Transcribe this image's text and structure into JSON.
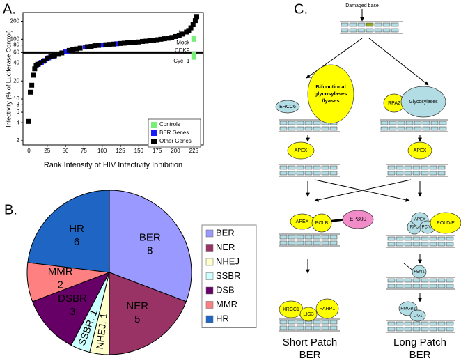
{
  "panel_labels": [
    "A.",
    "B.",
    "C."
  ],
  "chart_data": [
    {
      "type": "scatter",
      "xlabel": "Rank Intensity of HIV Infectivity Inhibition",
      "ylabel": "Infectivity (% of Luciferase Control)",
      "y_scale": "log",
      "xlim": [
        -8,
        238
      ],
      "ylim": [
        1.7,
        280
      ],
      "xticks": [
        0,
        25,
        50,
        75,
        100,
        125,
        150,
        175,
        200,
        225
      ],
      "yticks": [
        2,
        4,
        6,
        8,
        10,
        20,
        40,
        60,
        80,
        100,
        200
      ],
      "reference_line": 60,
      "legend": "bottom-right",
      "series": [
        {
          "name": "Controls",
          "color": "#77ee77",
          "x": [
            225,
            225,
            225,
            225
          ],
          "values": [
            105,
            100,
            56,
            50
          ]
        },
        {
          "name": "BER Genes",
          "color": "#1a1aff",
          "x": [
            13,
            17,
            22,
            27,
            33,
            50,
            52,
            77,
            100,
            120
          ],
          "values": [
            38,
            41,
            44,
            49,
            52,
            62,
            63,
            74,
            80,
            84
          ]
        },
        {
          "name": "Other Genes",
          "color": "#000000",
          "x": [
            0,
            2,
            4,
            6,
            8,
            10,
            12,
            15,
            20,
            25,
            30,
            35,
            40,
            45,
            55,
            60,
            65,
            70,
            80,
            85,
            90,
            95,
            105,
            110,
            115,
            125,
            130,
            135,
            140,
            145,
            150,
            155,
            160,
            165,
            170,
            175,
            180,
            185,
            190,
            195,
            200,
            205,
            210,
            215,
            218,
            221,
            224,
            227,
            229
          ],
          "values": [
            4.2,
            13,
            17,
            25,
            32,
            36,
            38,
            40,
            43,
            47,
            51,
            53,
            56,
            59,
            65,
            67,
            69,
            71,
            75,
            76,
            78,
            79,
            81,
            82,
            83,
            85,
            86,
            87,
            88,
            89,
            90,
            92,
            93,
            95,
            96,
            98,
            100,
            102,
            104,
            107,
            111,
            115,
            122,
            132,
            140,
            155,
            175,
            205,
            240
          ]
        }
      ],
      "annotations": [
        "LUC",
        "Mock",
        "CDK9",
        "CycT1"
      ]
    },
    {
      "type": "pie",
      "categories": [
        "BER",
        "NER",
        "NHEJ",
        "SSBR",
        "DSB",
        "MMR",
        "HR"
      ],
      "slice_labels": [
        "BER",
        "NER",
        "NHEJ,",
        "SSBR,",
        "DSBR",
        "MMR",
        "HR"
      ],
      "values": [
        8,
        5,
        1,
        1,
        3,
        2,
        6
      ],
      "colors": [
        "#9999ff",
        "#993366",
        "#ffffcc",
        "#ccffff",
        "#660066",
        "#ff8080",
        "#1f66c4"
      ],
      "legend": "right"
    }
  ],
  "diagram": {
    "damaged_base": "Damaged base",
    "nodes": [
      {
        "lines": [
          "Bifunctional",
          "glycosylases",
          "/lyases"
        ],
        "color": "#ffff00"
      },
      {
        "label": "ERCC6",
        "color": "#b3dde4"
      },
      {
        "label": "RPA2",
        "color": "#ffff00"
      },
      {
        "label": "Glycosylases",
        "color": "#b3dde4"
      },
      {
        "label": "APEX",
        "color": "#ffff00"
      },
      {
        "label": "APEX",
        "color": "#ffff00"
      },
      {
        "label": "APEX",
        "color": "#ffff00"
      },
      {
        "label": "POLB",
        "color": "#ffff00"
      },
      {
        "label": "EP300",
        "color": "#f28cc8"
      },
      {
        "label": "RFC",
        "color": "#b3dde4"
      },
      {
        "label": "APEX",
        "color": "#b3dde4"
      },
      {
        "label": "PCNA",
        "color": "#b3dde4"
      },
      {
        "label": "POLD/E",
        "color": "#ffff00"
      },
      {
        "label": "FEN1",
        "color": "#b3dde4"
      },
      {
        "label": "XRCC1",
        "color": "#ffff00"
      },
      {
        "label": "LIG3",
        "color": "#ffff00"
      },
      {
        "label": "PARP1",
        "color": "#ffff00"
      },
      {
        "label": "HMGB2",
        "color": "#b3dde4"
      },
      {
        "label": "LIG1",
        "color": "#b3dde4"
      }
    ],
    "outcomes": [
      {
        "lines": [
          "Short Patch",
          "BER"
        ]
      },
      {
        "lines": [
          "Long Patch",
          "BER"
        ]
      }
    ]
  }
}
